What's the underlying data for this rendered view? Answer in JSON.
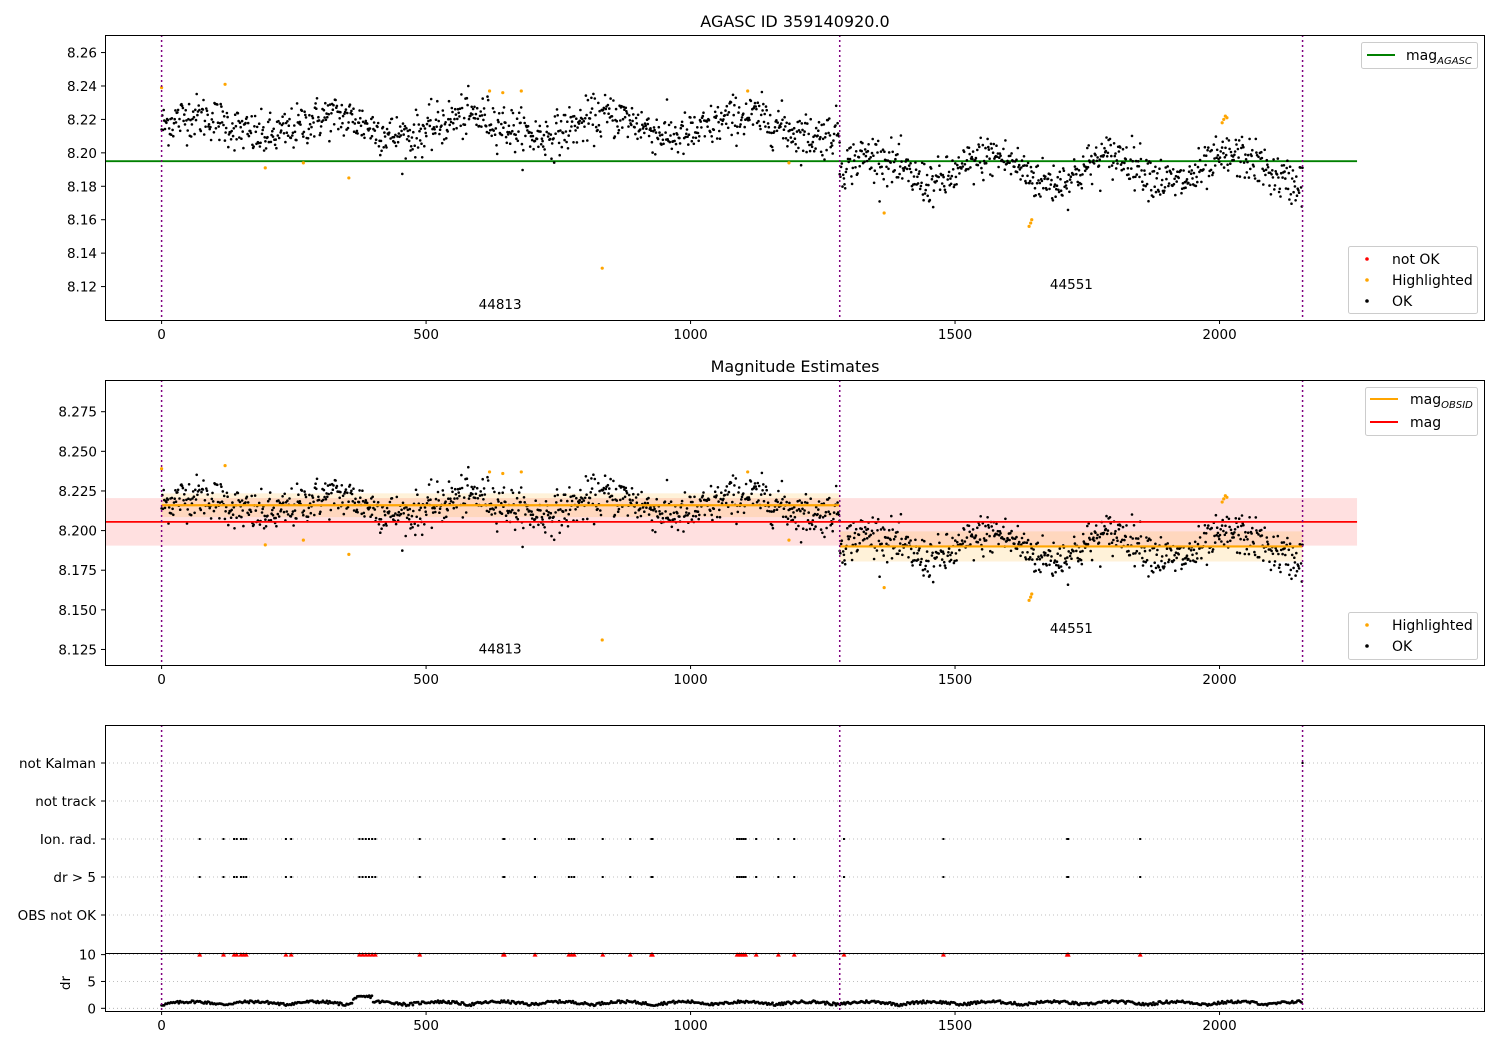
{
  "chart_data": [
    {
      "type": "scatter",
      "title": "AGASC ID 359140920.0",
      "xlim": [
        -107,
        2500
      ],
      "ylim": [
        8.1,
        8.2705
      ],
      "xticks": [
        0,
        500,
        1000,
        1500,
        2000
      ],
      "yticks": [
        8.12,
        8.14,
        8.16,
        8.18,
        8.2,
        8.22,
        8.24,
        8.26
      ],
      "ytick_labels": [
        "8.12",
        "8.14",
        "8.16",
        "8.18",
        "8.20",
        "8.22",
        "8.24",
        "8.26"
      ],
      "obsid_boundaries": [
        0,
        1282,
        2157
      ],
      "obsid_labels": [
        {
          "text": "44813",
          "x": 640,
          "y": 8.1065
        },
        {
          "text": "44551",
          "x": 1720,
          "y": 8.1185
        }
      ],
      "segments": [
        {
          "x0": 0,
          "x1": 1282,
          "mean": 8.216,
          "amp": 0.006,
          "period": 260,
          "noise": 0.0065
        },
        {
          "x0": 1282,
          "x1": 2157,
          "mean": 8.19,
          "amp": 0.008,
          "period": 230,
          "noise": 0.0065
        }
      ],
      "reference_lines": [
        {
          "name": "mag_AGASC",
          "y": 8.195,
          "x0": -107,
          "x1": 2260,
          "color": "#008000"
        }
      ],
      "highlighted_points": [
        [
          0,
          8.239
        ],
        [
          120,
          8.241
        ],
        [
          196,
          8.191
        ],
        [
          268,
          8.194
        ],
        [
          354,
          8.185
        ],
        [
          620,
          8.237
        ],
        [
          645,
          8.236
        ],
        [
          680,
          8.237
        ],
        [
          833,
          8.131
        ],
        [
          1108,
          8.237
        ],
        [
          1186,
          8.194
        ],
        [
          1366,
          8.164
        ],
        [
          1640,
          8.156
        ],
        [
          1643,
          8.158
        ],
        [
          1645,
          8.16
        ],
        [
          2005,
          8.218
        ],
        [
          2008,
          8.22
        ],
        [
          2011,
          8.222
        ],
        [
          2014,
          8.221
        ]
      ],
      "legends": [
        {
          "position": "top-right",
          "entries": [
            {
              "label": "mag",
              "sub": "AGASC",
              "kind": "line",
              "color": "#008000"
            }
          ]
        },
        {
          "position": "lower-right",
          "entries": [
            {
              "label": "not OK",
              "kind": "marker",
              "color": "#ff0000"
            },
            {
              "label": "Highlighted",
              "kind": "marker",
              "color": "#ffa500"
            },
            {
              "label": "OK",
              "kind": "marker",
              "color": "#000000"
            }
          ]
        }
      ]
    },
    {
      "type": "scatter",
      "title": "Magnitude Estimates",
      "xlim": [
        -107,
        2500
      ],
      "ylim": [
        8.1152,
        8.295
      ],
      "xticks": [
        0,
        500,
        1000,
        1500,
        2000
      ],
      "yticks": [
        8.125,
        8.15,
        8.175,
        8.2,
        8.225,
        8.25,
        8.275
      ],
      "ytick_labels": [
        "8.125",
        "8.150",
        "8.175",
        "8.200",
        "8.225",
        "8.250",
        "8.275"
      ],
      "obsid_boundaries": [
        0,
        1282,
        2157
      ],
      "obsid_labels": [
        {
          "text": "44813",
          "x": 640,
          "y": 8.1225
        },
        {
          "text": "44551",
          "x": 1720,
          "y": 8.1355
        }
      ],
      "mag": {
        "y": 8.2055,
        "band": [
          8.1905,
          8.2205
        ],
        "x0": -107,
        "x1": 2260,
        "color": "#ff0000"
      },
      "mag_obsid": [
        {
          "x0": 0,
          "x1": 1282,
          "y": 8.216,
          "band": [
            8.2085,
            8.2235
          ]
        },
        {
          "x0": 1282,
          "x1": 2157,
          "y": 8.19,
          "band": [
            8.1805,
            8.1995
          ]
        }
      ],
      "legends": [
        {
          "position": "top-right",
          "entries": [
            {
              "label": "mag",
              "sub": "OBSID",
              "kind": "line",
              "color": "#ffa500"
            },
            {
              "label": "mag",
              "kind": "line",
              "color": "#ff0000"
            }
          ]
        },
        {
          "position": "lower-right",
          "entries": [
            {
              "label": "Highlighted",
              "kind": "marker",
              "color": "#ffa500"
            },
            {
              "label": "OK",
              "kind": "marker",
              "color": "#000000"
            }
          ]
        }
      ]
    },
    {
      "type": "scatter",
      "title": "",
      "xlim": [
        -107,
        2500
      ],
      "categories": [
        "OBS not OK",
        "dr > 5",
        "Ion. rad.",
        "not Kalman",
        "not track"
      ],
      "category_order_top_to_bottom": [
        "not Kalman",
        "not track",
        "Ion. rad.",
        "dr > 5",
        "OBS not OK"
      ],
      "flag_times": [
        72,
        117,
        137,
        142,
        150,
        155,
        160,
        235,
        245,
        374,
        380,
        386,
        392,
        398,
        404,
        488,
        646,
        648,
        706,
        770,
        775,
        780,
        834,
        886,
        926,
        928,
        1088,
        1092,
        1096,
        1100,
        1104,
        1124,
        1166,
        1196,
        1290,
        1478,
        1712,
        1714,
        1850
      ],
      "not_kalman_times": [
        2157
      ],
      "obsid_boundaries": [
        0,
        1282,
        2157
      ],
      "grid": true
    },
    {
      "type": "scatter",
      "ylabel": "dr",
      "xlim": [
        -107,
        2500
      ],
      "ylim": [
        -0.5,
        10.3
      ],
      "xticks": [
        0,
        500,
        1000,
        1500,
        2000
      ],
      "yticks": [
        0,
        5,
        10
      ],
      "clip_marker_y": 10,
      "dr_baseline": 0.7,
      "obsid_boundaries": [
        0,
        1282,
        2157
      ],
      "grid": true
    }
  ]
}
